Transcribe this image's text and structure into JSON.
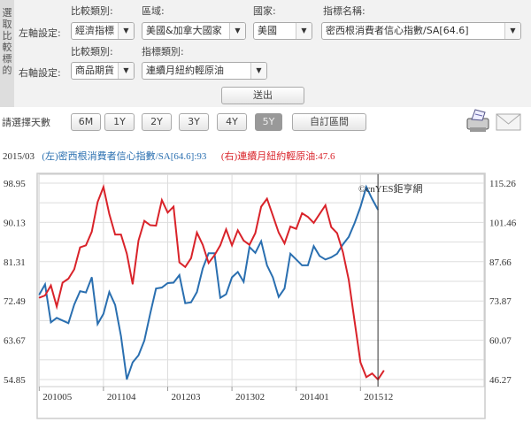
{
  "panel": {
    "side_title": [
      "選",
      "取",
      "比",
      "較",
      "標",
      "的"
    ],
    "left_axis": {
      "label": "左軸設定:",
      "category_label": "比較類別:",
      "category_value": "經濟指標",
      "region_label": "區域:",
      "region_value": "美國&加拿大國家",
      "country_label": "國家:",
      "country_value": "美國",
      "indicator_label": "指標名稱:",
      "indicator_value": "密西根消費者信心指數/SA[64.6]"
    },
    "right_axis": {
      "label": "右軸設定:",
      "category_label": "比較類別:",
      "category_value": "商品期貨",
      "indicator_label": "指標類別:",
      "indicator_value": "連續月紐約輕原油"
    },
    "submit": "送出"
  },
  "range": {
    "label": "請選擇天數",
    "buttons": [
      "6M",
      "1Y",
      "2Y",
      "3Y",
      "4Y",
      "5Y",
      "自訂區間"
    ],
    "active": "5Y"
  },
  "icons": {
    "print": "printer-icon",
    "mail": "mail-icon"
  },
  "legend": {
    "date": "2015/03",
    "left": "(左)密西根消費者信心指數/SA[64.6]:93",
    "right": "(右)連續月紐約輕原油:47.6",
    "left_color": "#2a6fb0",
    "right_color": "#d9232a"
  },
  "chart_data": {
    "type": "line",
    "watermark": "©cnYES鉅亨網",
    "x_tick_labels": [
      "201005",
      "201104",
      "201203",
      "201302",
      "201401",
      "201512"
    ],
    "left_axis": {
      "ticks": [
        "98.95",
        "90.13",
        "81.31",
        "72.49",
        "63.67",
        "54.85"
      ],
      "ylim": [
        54.85,
        98.95
      ]
    },
    "right_axis": {
      "ticks": [
        "115.26",
        "101.46",
        "87.66",
        "73.87",
        "60.07",
        "46.27"
      ],
      "ylim": [
        46.27,
        115.26
      ]
    },
    "grid": true,
    "cursor": "201503",
    "series": [
      {
        "axis": "left",
        "color": "#2a6fb0",
        "name": "(左)密西根消費者信心指數/SA[64.6]",
        "values": [
          73.9,
          76.2,
          67.7,
          68.7,
          68.1,
          67.5,
          71.7,
          74.7,
          74.4,
          77.8,
          67.3,
          69.6,
          74.5,
          71.6,
          64.6,
          54.9,
          58.7,
          60.3,
          63.6,
          69.6,
          75.3,
          75.5,
          76.5,
          76.6,
          78.3,
          72.0,
          72.2,
          74.5,
          79.8,
          83.2,
          83.2,
          73.2,
          74.0,
          77.8,
          79.0,
          76.8,
          84.6,
          83.3,
          85.9,
          80.5,
          77.8,
          73.4,
          75.3,
          83.1,
          81.8,
          80.5,
          80.5,
          84.8,
          82.6,
          81.8,
          82.3,
          83.1,
          85.2,
          86.9,
          90.0,
          93.6,
          98.1,
          95.4,
          93.0
        ]
      },
      {
        "axis": "right",
        "color": "#d9232a",
        "name": "(右)連續月紐約輕原油",
        "values": [
          75.0,
          75.8,
          79.3,
          71.9,
          80.3,
          81.7,
          85.0,
          92.7,
          93.4,
          98.2,
          108.6,
          113.9,
          104.4,
          97.2,
          97.2,
          90.5,
          79.8,
          95.1,
          102.0,
          100.5,
          100.3,
          109.3,
          104.9,
          107.0,
          87.4,
          85.8,
          88.9,
          97.9,
          93.6,
          87.2,
          89.9,
          93.4,
          99.0,
          93.4,
          98.7,
          95.1,
          93.6,
          97.7,
          107.0,
          109.8,
          103.9,
          97.9,
          94.1,
          100.0,
          99.2,
          104.7,
          103.4,
          101.3,
          104.4,
          107.5,
          99.8,
          97.7,
          91.0,
          81.2,
          66.7,
          52.3,
          47.1,
          48.4,
          46.3,
          49.4
        ]
      }
    ]
  }
}
